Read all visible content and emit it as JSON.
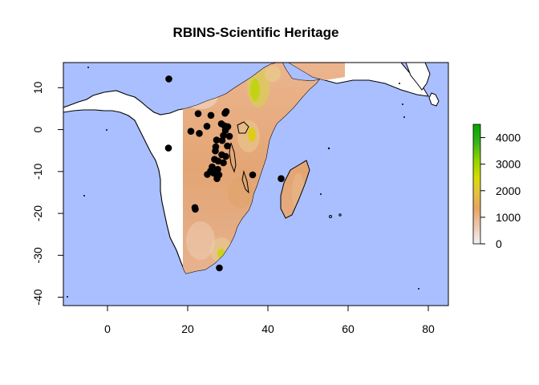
{
  "title": "RBINS-Scientific Heritage",
  "map": {
    "xlim": [
      -11,
      85
    ],
    "ylim": [
      -42,
      16
    ],
    "x_ticks": [
      0,
      20,
      40,
      60,
      80
    ],
    "y_ticks": [
      10,
      0,
      -10,
      -20,
      -30,
      -40
    ],
    "colors": {
      "ocean": "#aabfff",
      "land_outside_raster": "#ffffff",
      "coastline": "#000000"
    },
    "elevation_raster": {
      "lon_range": [
        19,
        52
      ],
      "lat_range": [
        -35,
        16
      ]
    }
  },
  "legend": {
    "ticks": [
      0,
      1000,
      2000,
      3000,
      4000
    ],
    "max": 4500,
    "gradient": [
      "#f2f2f2",
      "#edb68e",
      "#e6a560",
      "#ddd300",
      "#90d500",
      "#2a9f1a",
      "#00a600"
    ]
  },
  "points": [
    [
      15.3,
      12.1
    ],
    [
      22.6,
      3.8
    ],
    [
      25.8,
      3.4
    ],
    [
      29.3,
      3.9
    ],
    [
      29.6,
      4.3
    ],
    [
      20.8,
      -0.4
    ],
    [
      22.9,
      -0.9
    ],
    [
      24.8,
      0.8
    ],
    [
      28.4,
      1.4
    ],
    [
      29.2,
      0.9
    ],
    [
      30.0,
      0.7
    ],
    [
      29.4,
      -0.2
    ],
    [
      30.4,
      -1.6
    ],
    [
      28.9,
      -1.4
    ],
    [
      27.2,
      -2.5
    ],
    [
      28.6,
      -2.6
    ],
    [
      27.0,
      -4.1
    ],
    [
      29.9,
      -3.9
    ],
    [
      26.9,
      -5.1
    ],
    [
      15.2,
      -4.4
    ],
    [
      28.5,
      -6.0
    ],
    [
      29.5,
      -6.4
    ],
    [
      26.7,
      -7.1
    ],
    [
      27.6,
      -7.5
    ],
    [
      28.9,
      -7.9
    ],
    [
      26.1,
      -8.9
    ],
    [
      27.5,
      -9.5
    ],
    [
      25.7,
      -9.9
    ],
    [
      26.5,
      -10.4
    ],
    [
      27.8,
      -10.8
    ],
    [
      24.9,
      -10.7
    ],
    [
      27.3,
      -11.7
    ],
    [
      36.2,
      -10.8
    ],
    [
      43.3,
      -11.7
    ],
    [
      21.8,
      -18.6
    ],
    [
      21.9,
      -19.0
    ],
    [
      27.9,
      -33.0
    ]
  ]
}
